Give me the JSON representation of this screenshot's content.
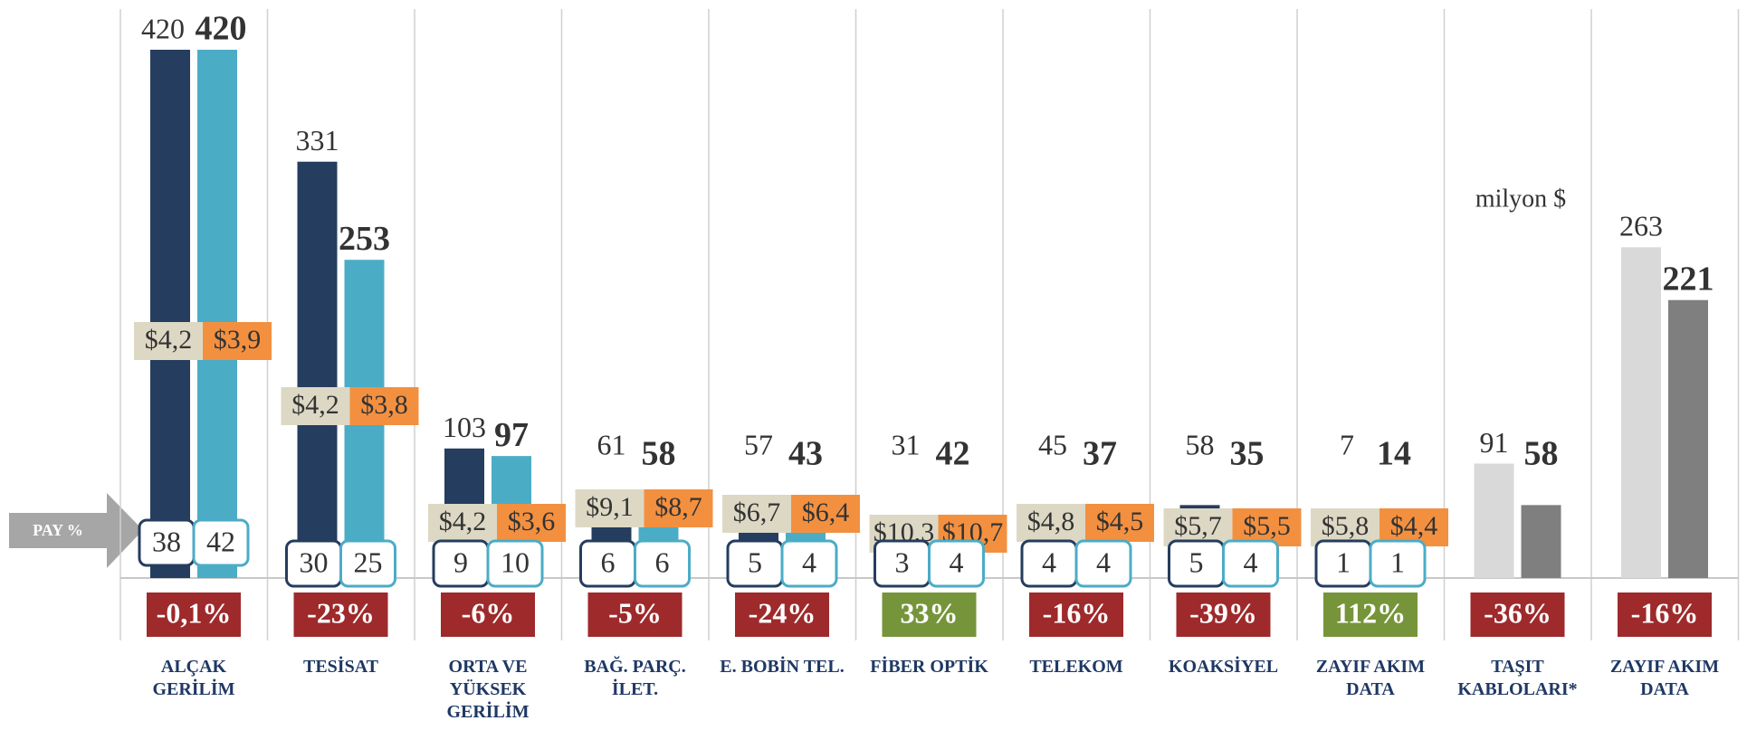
{
  "chart_data": {
    "type": "bar",
    "note": "milyon $",
    "share_label": "PAY %",
    "categories": [
      "ALÇAK GERİLİM",
      "TESİSAT",
      "ORTA VE YÜKSEK GERİLİM",
      "BAĞ. PARÇ. İLET.",
      "E. BOBİN TEL.",
      "FİBER OPTİK",
      "TELEKOM",
      "KOAKSİYEL",
      "ZAYIF AKIM DATA",
      "TAŞIT KABLOLARI*",
      "ZAYIF AKIM DATA"
    ],
    "series": [
      {
        "colors": [
          "#253d5e",
          "#253d5e",
          "#253d5e",
          "#253d5e",
          "#253d5e",
          "#253d5e",
          "#253d5e",
          "#253d5e",
          "#253d5e",
          "#d9d9d9",
          "#d9d9d9"
        ],
        "border": "#253d5e",
        "price_fill": "#ddd8c4",
        "bold": false,
        "values": [
          420,
          331,
          103,
          61,
          57,
          31,
          45,
          58,
          7,
          91,
          263
        ],
        "prices": [
          "$4,2",
          "$4,2",
          "$4,2",
          "$9,1",
          "$6,7",
          "$10,3",
          "$4,8",
          "$5,7",
          "$5,8",
          null,
          null
        ],
        "shares": [
          38,
          30,
          9,
          6,
          5,
          3,
          4,
          5,
          1,
          null,
          null
        ]
      },
      {
        "colors": [
          "#4bacc6",
          "#4bacc6",
          "#4bacc6",
          "#4bacc6",
          "#4bacc6",
          "#4bacc6",
          "#4bacc6",
          "#4bacc6",
          "#4bacc6",
          "#7f7f7f",
          "#7f7f7f"
        ],
        "border": "#4bacc6",
        "price_fill": "#f39040",
        "bold": true,
        "values": [
          420,
          253,
          97,
          58,
          43,
          42,
          37,
          35,
          14,
          58,
          221
        ],
        "prices": [
          "$3,9",
          "$3,8",
          "$3,6",
          "$8,7",
          "$6,4",
          "$10,7",
          "$4,5",
          "$5,5",
          "$4,4",
          null,
          null
        ],
        "shares": [
          42,
          25,
          10,
          6,
          4,
          4,
          4,
          4,
          1,
          null,
          null
        ]
      }
    ],
    "changes": [
      -0.1,
      -23,
      -6,
      -5,
      -24,
      33,
      -16,
      -39,
      112,
      -36,
      -16
    ],
    "change_labels": [
      "-0,1%",
      "-23%",
      "-6%",
      "-5%",
      "-24%",
      "33%",
      "-16%",
      "-39%",
      "112%",
      "-36%",
      "-16%"
    ],
    "change_colors": {
      "negative": "#9e2a2b",
      "positive": "#76953a"
    },
    "ylim": [
      0,
      420
    ]
  }
}
